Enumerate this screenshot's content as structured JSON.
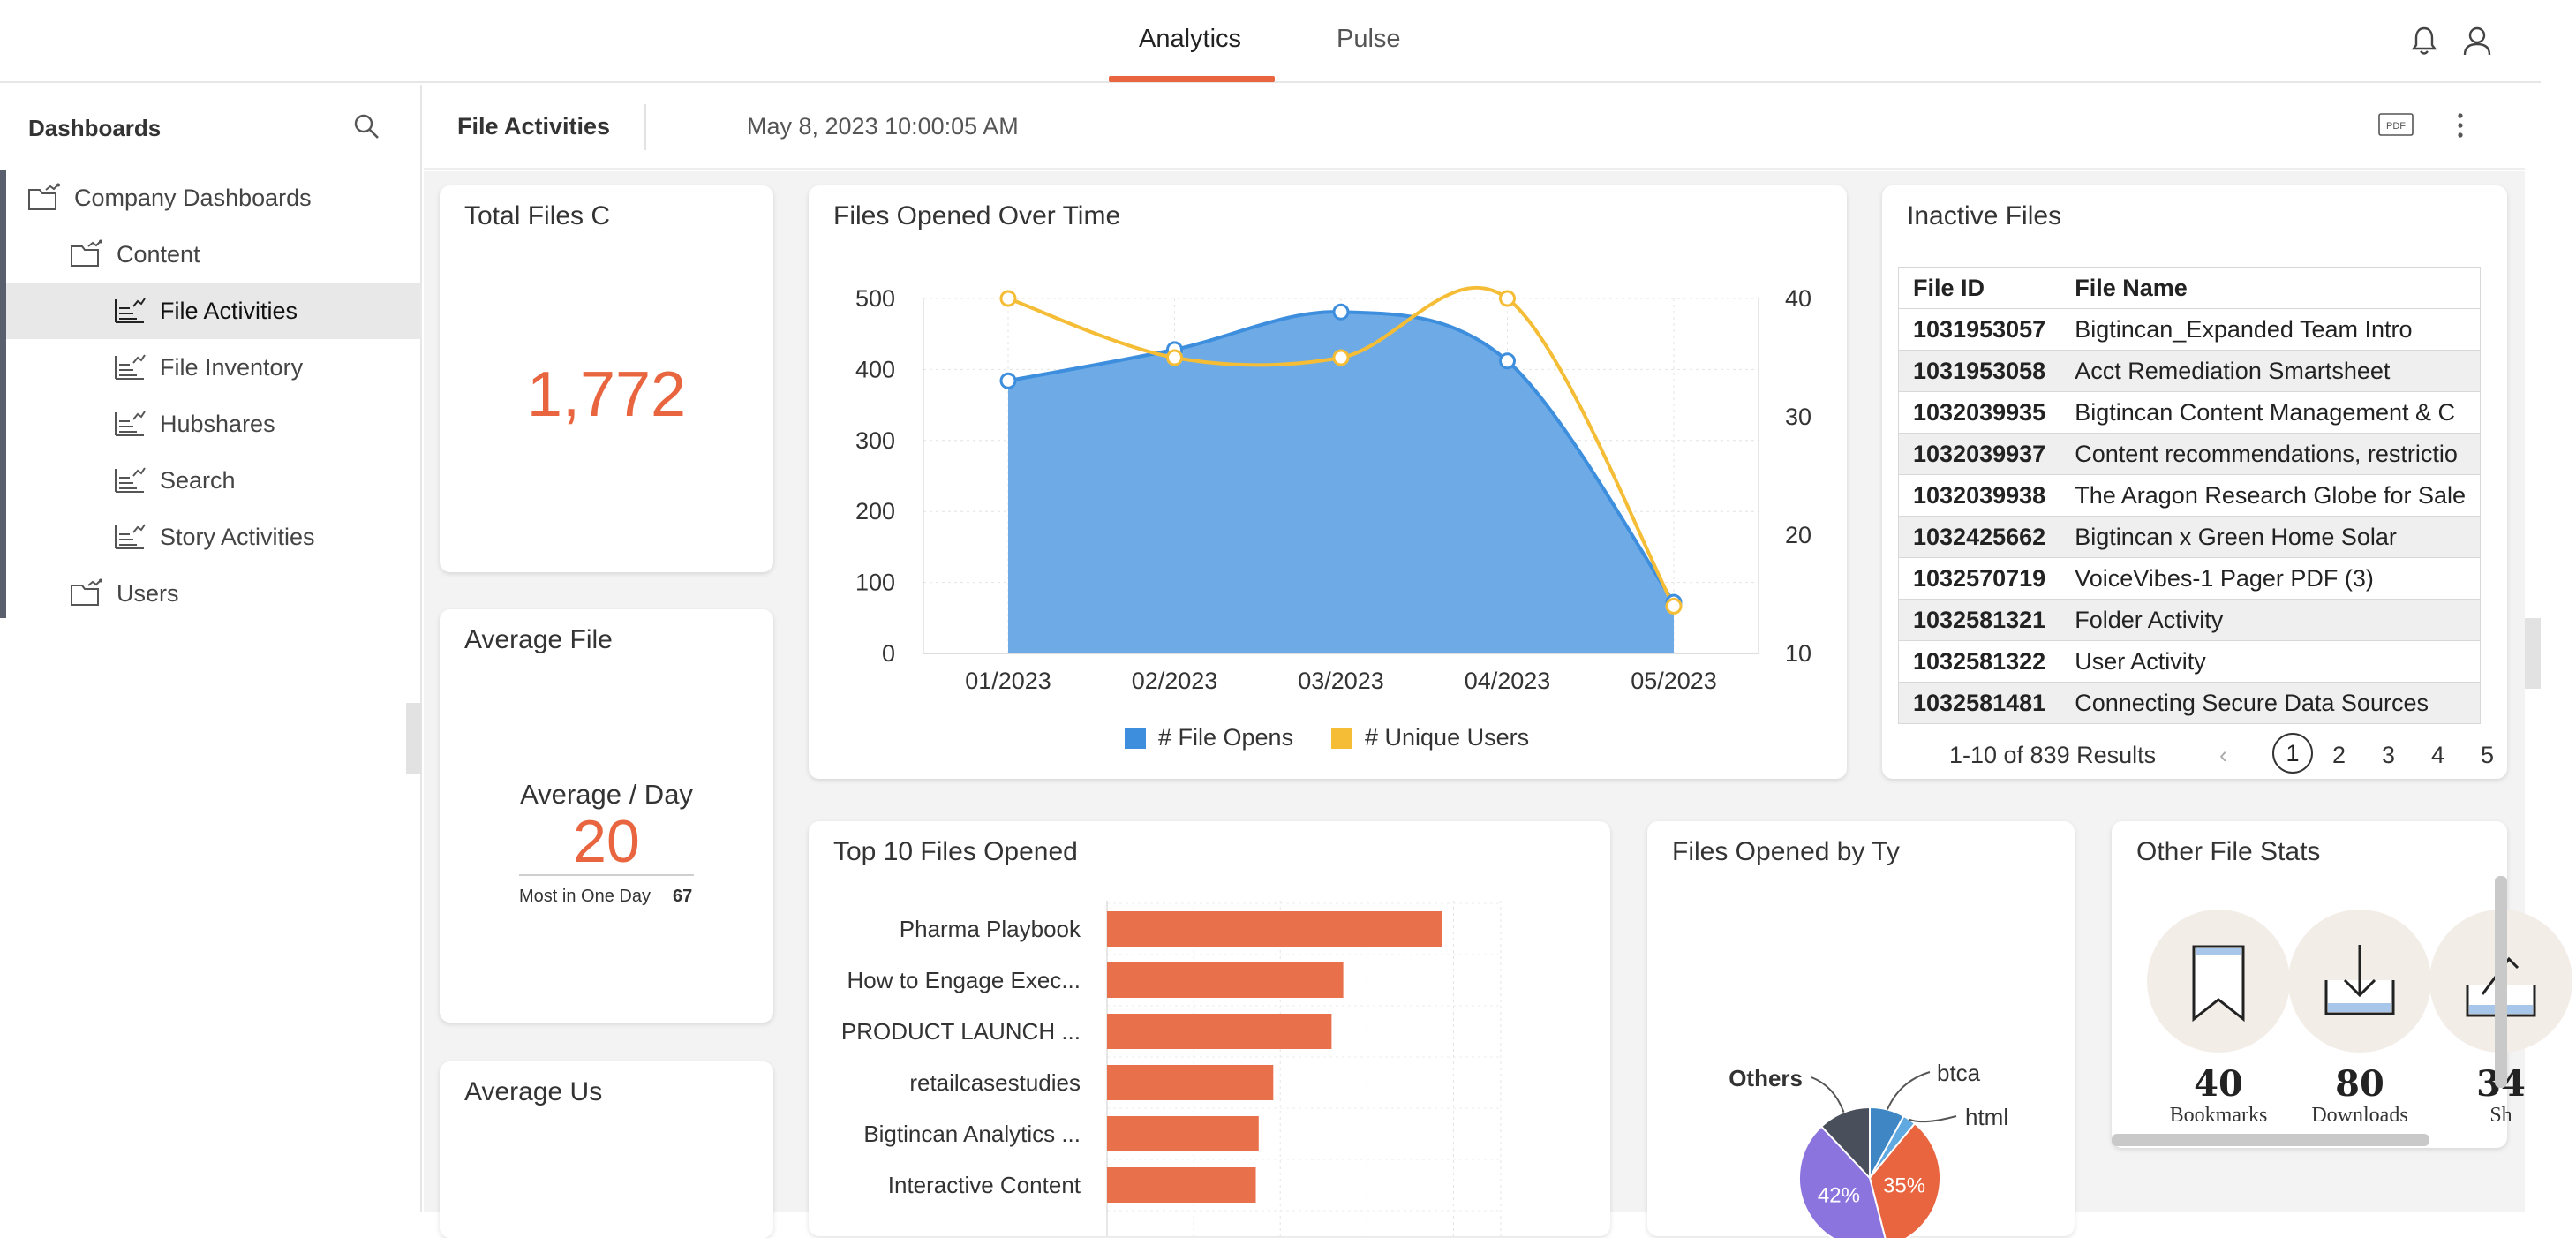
{
  "top_tabs": [
    {
      "label": "Analytics",
      "active": true
    },
    {
      "label": "Pulse",
      "active": false
    }
  ],
  "sidebar": {
    "title": "Dashboards",
    "items": [
      {
        "label": "Company Dashboards",
        "level": 0
      },
      {
        "label": "Content",
        "level": 1
      },
      {
        "label": "File Activities",
        "level": 2,
        "selected": true
      },
      {
        "label": "File Inventory",
        "level": 2
      },
      {
        "label": "Hubshares",
        "level": 2
      },
      {
        "label": "Search",
        "level": 2
      },
      {
        "label": "Story Activities",
        "level": 2
      },
      {
        "label": "Users",
        "level": 1
      }
    ]
  },
  "header": {
    "title": "File Activities",
    "date": "May 8, 2023 10:00:05 AM",
    "pdf_label": "PDF"
  },
  "cards": {
    "total_files": {
      "title": "Total Files C",
      "value": "1,772"
    },
    "average_files": {
      "title": "Average File",
      "subtitle": "Average / Day",
      "value": "20",
      "most_label": "Most in One Day",
      "most_value": "67"
    },
    "average_users": {
      "title": "Average Us"
    },
    "files_over_time": {
      "title": "Files Opened Over Time"
    },
    "inactive_files": {
      "title": "Inactive Files",
      "columns": [
        "File ID",
        "File Name"
      ],
      "rows": [
        [
          "1031953057",
          "Bigtincan_Expanded Team Intro"
        ],
        [
          "1031953058",
          "Acct Remediation Smartsheet"
        ],
        [
          "1032039935",
          "Bigtincan Content Management & C"
        ],
        [
          "1032039937",
          "Content recommendations, restrictio"
        ],
        [
          "1032039938",
          "The Aragon Research Globe for Sale"
        ],
        [
          "1032425662",
          "Bigtincan x Green Home Solar"
        ],
        [
          "1032570719",
          "VoiceVibes-1 Pager PDF (3)"
        ],
        [
          "1032581321",
          "Folder Activity"
        ],
        [
          "1032581322",
          "User Activity"
        ],
        [
          "1032581481",
          "Connecting Secure Data Sources"
        ]
      ],
      "results": "1-10 of 839 Results",
      "prev": "‹",
      "pages": [
        "1",
        "2",
        "3",
        "4",
        "5"
      ]
    },
    "top_files": {
      "title": "Top 10 Files Opened"
    },
    "by_type": {
      "title": "Files Opened by Ty"
    },
    "other_stats": {
      "title": "Other File Stats",
      "stats": [
        {
          "value": "40",
          "label": "Bookmarks"
        },
        {
          "value": "80",
          "label": "Downloads"
        },
        {
          "value": "34",
          "label": "Sh"
        }
      ]
    }
  },
  "chart_data": [
    {
      "type": "area",
      "title": "Files Opened Over Time",
      "categories": [
        "01/2023",
        "02/2023",
        "03/2023",
        "04/2023",
        "05/2023"
      ],
      "series": [
        {
          "name": "# File Opens",
          "axis": "left",
          "values": [
            384,
            428,
            481,
            412,
            72
          ],
          "color": "#3e8ede"
        },
        {
          "name": "# Unique Users",
          "axis": "right",
          "values": [
            40,
            35,
            35,
            40,
            14
          ],
          "color": "#f5bd36"
        }
      ],
      "y_left": {
        "range": [
          0,
          500
        ],
        "ticks": [
          0,
          100,
          200,
          300,
          400,
          500
        ]
      },
      "y_right": {
        "range": [
          10,
          40
        ],
        "ticks": [
          10,
          20,
          30,
          40
        ]
      },
      "legend": [
        "# File Opens",
        "# Unique Users"
      ]
    },
    {
      "type": "bar",
      "orientation": "horizontal",
      "title": "Top 10 Files Opened",
      "categories": [
        "Pharma Playbook",
        "How to Engage Exec...",
        "PRODUCT LAUNCH ...",
        "retailcasestudies",
        "Bigtincan Analytics ...",
        "Interactive Content"
      ],
      "values": [
        115,
        81,
        77,
        57,
        52,
        51
      ],
      "xlim": [
        0,
        135
      ],
      "color": "#e8704a"
    },
    {
      "type": "pie",
      "title": "Files Opened by Ty",
      "labels": [
        "btca",
        "html",
        "Others"
      ],
      "visible_percent_labels": [
        "42%",
        "35%"
      ],
      "slices": [
        {
          "name": "btca",
          "value": 8,
          "color": "#3e86c4"
        },
        {
          "name": "html",
          "value": 3,
          "color": "#5fa8e0"
        },
        {
          "name": "seg-orange",
          "value": 35,
          "color": "#e8653f"
        },
        {
          "name": "seg-purple",
          "value": 42,
          "color": "#8c74df"
        },
        {
          "name": "Others",
          "value": 12,
          "color": "#4a4f5c"
        }
      ]
    }
  ]
}
